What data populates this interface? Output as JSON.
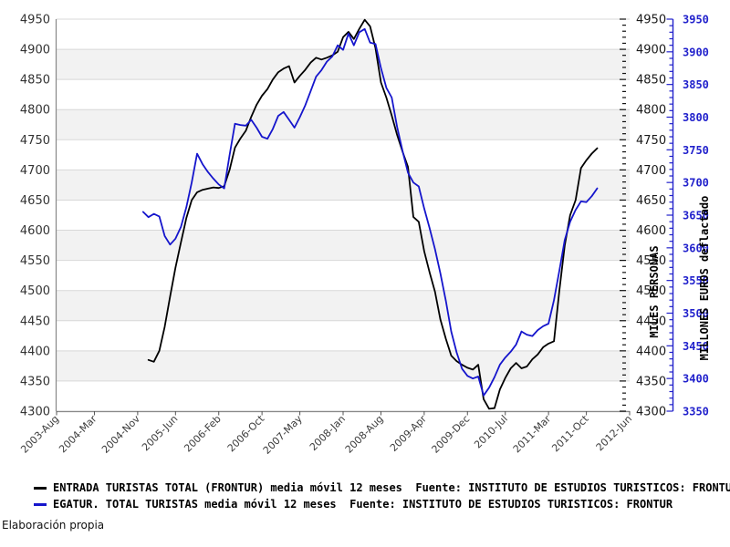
{
  "chart_data": {
    "type": "line",
    "x_count": 107,
    "x_tick_labels": [
      "2003-Aug",
      "2004-Mar",
      "2004-Nov",
      "2005-Jun",
      "2006-Feb",
      "2006-Oct",
      "2007-May",
      "2008-Jan",
      "2008-Aug",
      "2009-Apr",
      "2009-Dec",
      "2010-Jul",
      "2011-Mar",
      "2011-Oct",
      "2012-Jun"
    ],
    "x_tick_indices": [
      0,
      7,
      15,
      22,
      30,
      38,
      45,
      53,
      60,
      68,
      76,
      83,
      91,
      98,
      106
    ],
    "left_axis": {
      "min": 4300,
      "max": 4950,
      "step": 50,
      "title": "MILES PERSONAS"
    },
    "right_axis_persons": {
      "min": 4300,
      "max": 4950,
      "step": 50,
      "minor_step": 10
    },
    "right_axis_euros": {
      "min": 3350,
      "max": 3950,
      "step": 50,
      "minor_step": 10,
      "title": "MILLONES EUROS deflactado"
    },
    "grid": true,
    "band_colors": [
      "#ffffff",
      "#f2f2f2"
    ],
    "series": [
      {
        "name": "ENTRADA TURISTAS TOTAL (FRONTUR) media móvil 12 meses",
        "axis": "left",
        "color": "#000000",
        "values": [
          null,
          null,
          null,
          null,
          null,
          null,
          null,
          null,
          null,
          null,
          null,
          null,
          null,
          null,
          null,
          null,
          null,
          4385,
          4382,
          4400,
          4440,
          4490,
          4538,
          4580,
          4620,
          4650,
          4663,
          4667,
          4669,
          4671,
          4670,
          4673,
          4700,
          4737,
          4752,
          4765,
          4788,
          4808,
          4823,
          4834,
          4850,
          4862,
          4868,
          4872,
          4845,
          4856,
          4866,
          4878,
          4886,
          4883,
          4886,
          4890,
          4896,
          4920,
          4929,
          4917,
          4934,
          4949,
          4938,
          4902,
          4845,
          4820,
          4790,
          4758,
          4730,
          4705,
          4622,
          4614,
          4565,
          4530,
          4498,
          4452,
          4420,
          4392,
          4383,
          4377,
          4372,
          4369,
          4377,
          4320,
          4304,
          4305,
          4336,
          4355,
          4371,
          4380,
          4371,
          4374,
          4386,
          4394,
          4406,
          4412,
          4416,
          4500,
          4575,
          4625,
          4650,
          4703,
          4716,
          4727,
          4736,
          null,
          null,
          null,
          null,
          null,
          null
        ]
      },
      {
        "name": "EGATUR. TOTAL TURISTAS media móvil 12 meses",
        "axis": "euros",
        "color": "#1515cc",
        "values": [
          null,
          null,
          null,
          null,
          null,
          null,
          null,
          null,
          null,
          null,
          null,
          null,
          null,
          null,
          null,
          null,
          3655,
          3647,
          3652,
          3648,
          3618,
          3605,
          3614,
          3632,
          3662,
          3700,
          3744,
          3728,
          3716,
          3706,
          3697,
          3691,
          3742,
          3790,
          3788,
          3787,
          3796,
          3784,
          3770,
          3767,
          3782,
          3802,
          3808,
          3796,
          3784,
          3800,
          3818,
          3840,
          3862,
          3872,
          3885,
          3893,
          3910,
          3903,
          3928,
          3910,
          3930,
          3935,
          3914,
          3912,
          3875,
          3845,
          3830,
          3785,
          3748,
          3715,
          3700,
          3694,
          3660,
          3630,
          3598,
          3561,
          3519,
          3472,
          3440,
          3415,
          3404,
          3400,
          3403,
          3374,
          3386,
          3402,
          3421,
          3432,
          3441,
          3452,
          3472,
          3467,
          3465,
          3474,
          3480,
          3484,
          3520,
          3565,
          3612,
          3640,
          3658,
          3671,
          3670,
          3679,
          3691,
          null,
          null,
          null,
          null,
          null,
          null
        ]
      }
    ]
  },
  "axis_titles": {
    "persons": "MILES PERSONAS",
    "euros": "MILLONES EUROS deflactado"
  },
  "legend": {
    "items": [
      {
        "label": "ENTRADA TURISTAS TOTAL (FRONTUR) media móvil 12 meses  Fuente: INSTITUTO DE ESTUDIOS TURISTICOS: FRONTUR",
        "color": "#000000"
      },
      {
        "label": "EGATUR. TOTAL TURISTAS media móvil 12 meses  Fuente: INSTITUTO DE ESTUDIOS TURISTICOS: FRONTUR",
        "color": "#1515cc"
      }
    ]
  },
  "footer": {
    "note": "Elaboración propia"
  },
  "colors": {
    "frontur_line": "#000000",
    "egatur_line": "#1515cc",
    "egatur_axis_label": "#2222cc",
    "grid_line": "#d8d8d8",
    "band_gray": "#f2f2f2",
    "axis_border": "#888888",
    "tick_label": "#3c3c3c",
    "y_label_left": "#333333",
    "y_label_right": "#1a1a1a"
  }
}
